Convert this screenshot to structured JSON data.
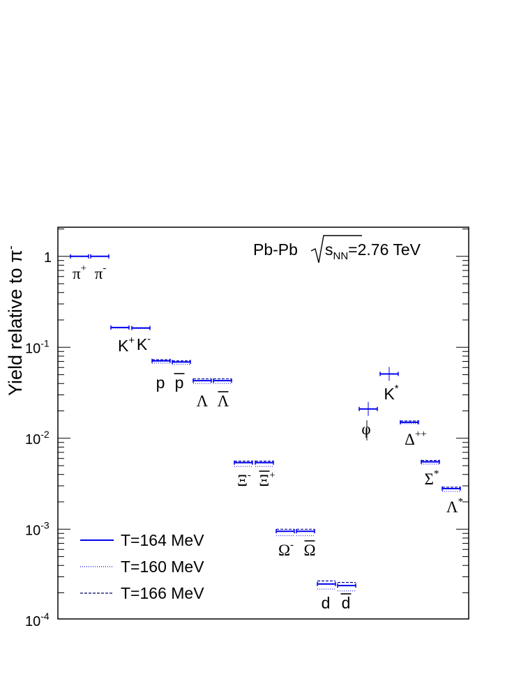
{
  "chart_data": {
    "type": "scatter",
    "ylabel": "Yield relative to π",
    "ylabel_sup": "-",
    "y_scale": "log",
    "ylim": [
      0.0001,
      2
    ],
    "yticks": [
      {
        "value": 1,
        "base": "1",
        "exp": ""
      },
      {
        "value": 0.1,
        "base": "10",
        "exp": "-1"
      },
      {
        "value": 0.01,
        "base": "10",
        "exp": "-2"
      },
      {
        "value": 0.001,
        "base": "10",
        "exp": "-3"
      },
      {
        "value": 0.0001,
        "base": "10",
        "exp": "-4"
      }
    ],
    "annotation": {
      "system": "Pb-Pb",
      "var_main": "s",
      "var_sub": "NN",
      "energy": "=2.76 TeV"
    },
    "legend_position": "bottom-left",
    "series": [
      {
        "name": "T=164 MeV",
        "style": "solid",
        "color": "#0000ee"
      },
      {
        "name": "T=160 MeV",
        "style": "dotted",
        "color": "#0000ee"
      },
      {
        "name": "T=166 MeV",
        "style": "dashed",
        "color": "#000066"
      }
    ],
    "particles": [
      {
        "id": "pi-plus",
        "label": "π",
        "sup": "+",
        "t164": 1.0,
        "t160": 1.0,
        "t166": 1.0
      },
      {
        "id": "pi-minus",
        "label": "π",
        "sup": "-",
        "t164": 1.0,
        "t160": 1.0,
        "t166": 1.0
      },
      {
        "id": "k-plus",
        "label": "K",
        "sup": "+",
        "t164": 0.165,
        "t160": 0.163,
        "t166": 0.166
      },
      {
        "id": "k-minus",
        "label": "K",
        "sup": "-",
        "t164": 0.163,
        "t160": 0.161,
        "t166": 0.164
      },
      {
        "id": "proton",
        "label": "p",
        "t164": 0.071,
        "t160": 0.067,
        "t166": 0.073
      },
      {
        "id": "antiproton",
        "label": "p",
        "bar": true,
        "t164": 0.069,
        "t160": 0.065,
        "t166": 0.071
      },
      {
        "id": "lambda",
        "label": "Λ",
        "t164": 0.043,
        "t160": 0.04,
        "t166": 0.045
      },
      {
        "id": "antilambda",
        "label": "Λ",
        "bar": true,
        "t164": 0.043,
        "t160": 0.04,
        "t166": 0.045
      },
      {
        "id": "xi-minus",
        "label": "Ξ",
        "sup": "-",
        "t164": 0.0054,
        "t160": 0.0049,
        "t166": 0.0056
      },
      {
        "id": "antixi-plus",
        "label": "Ξ",
        "sup": "+",
        "bar": true,
        "t164": 0.0054,
        "t160": 0.0049,
        "t166": 0.0056
      },
      {
        "id": "omega-minus",
        "label": "Ω",
        "sup": "-",
        "t164": 0.00095,
        "t160": 0.00085,
        "t166": 0.001
      },
      {
        "id": "antiomega",
        "label": "Ω",
        "bar": true,
        "t164": 0.00095,
        "t160": 0.00085,
        "t166": 0.001
      },
      {
        "id": "deuteron",
        "label": "d",
        "t164": 0.00025,
        "t160": 0.00022,
        "t166": 0.00027
      },
      {
        "id": "antideuteron",
        "label": "d",
        "bar": true,
        "t164": 0.00024,
        "t160": 0.00021,
        "t166": 0.00026
      },
      {
        "id": "phi",
        "label": "φ",
        "t164": 0.021,
        "t160": 0.021,
        "t166": 0.021
      },
      {
        "id": "k-star",
        "label": "K",
        "sup": "*",
        "t164": 0.051,
        "t160": 0.051,
        "t166": 0.051
      },
      {
        "id": "delta-plusplus",
        "label": "Δ",
        "sup": "++",
        "t164": 0.015,
        "t160": 0.0145,
        "t166": 0.0155
      },
      {
        "id": "sigma-star",
        "label": "Σ",
        "sup": "*",
        "t164": 0.0055,
        "t160": 0.0052,
        "t166": 0.0057
      },
      {
        "id": "lambda-star",
        "label": "Λ",
        "sup": "*",
        "t164": 0.0028,
        "t160": 0.0026,
        "t166": 0.0029
      }
    ]
  }
}
